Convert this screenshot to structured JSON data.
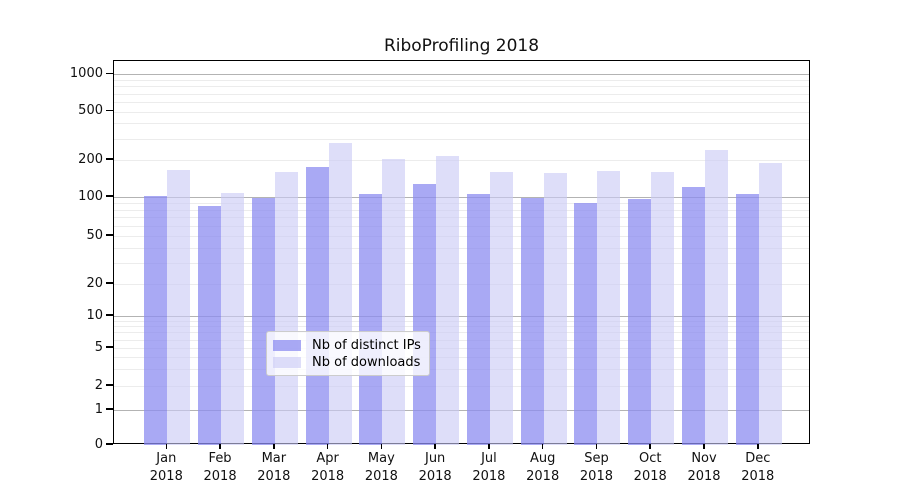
{
  "chart_data": {
    "type": "bar",
    "title": "RiboProfiling 2018",
    "categories": [
      "Jan 2018",
      "Feb 2018",
      "Mar 2018",
      "Apr 2018",
      "May 2018",
      "Jun 2018",
      "Jul 2018",
      "Aug 2018",
      "Sep 2018",
      "Oct 2018",
      "Nov 2018",
      "Dec 2018"
    ],
    "x_tick_lines": [
      {
        "month": "Jan",
        "year": "2018"
      },
      {
        "month": "Feb",
        "year": "2018"
      },
      {
        "month": "Mar",
        "year": "2018"
      },
      {
        "month": "Apr",
        "year": "2018"
      },
      {
        "month": "May",
        "year": "2018"
      },
      {
        "month": "Jun",
        "year": "2018"
      },
      {
        "month": "Jul",
        "year": "2018"
      },
      {
        "month": "Aug",
        "year": "2018"
      },
      {
        "month": "Sep",
        "year": "2018"
      },
      {
        "month": "Oct",
        "year": "2018"
      },
      {
        "month": "Nov",
        "year": "2018"
      },
      {
        "month": "Dec",
        "year": "2018"
      }
    ],
    "series": [
      {
        "name": "Nb of distinct IPs",
        "values": [
          102,
          85,
          98,
          176,
          105,
          128,
          105,
          99,
          90,
          96,
          121,
          106
        ]
      },
      {
        "name": "Nb of downloads",
        "values": [
          165,
          107,
          160,
          278,
          202,
          214,
          160,
          156,
          163,
          160,
          240,
          190
        ]
      }
    ],
    "yscale": "symlog",
    "y_ticks": [
      0,
      1,
      2,
      5,
      10,
      20,
      50,
      100,
      200,
      500,
      1000
    ],
    "y_tick_labels": [
      "0",
      "1",
      "2",
      "5",
      "10",
      "20",
      "50",
      "100",
      "200",
      "500",
      "1000"
    ],
    "ylim": [
      0,
      1400
    ],
    "grid": true,
    "legend_position": "lower center"
  },
  "legend": {
    "entries": [
      {
        "label": "Nb of distinct IPs",
        "series": "ips"
      },
      {
        "label": "Nb of downloads",
        "series": "downloads"
      }
    ]
  },
  "colors": {
    "ips_bar": "rgba(140,140,240,0.75)",
    "downloads_bar": "rgba(202,202,246,0.62)",
    "major_grid": "#b3b3b3",
    "minor_grid": "#ececec",
    "axis": "#000000"
  }
}
